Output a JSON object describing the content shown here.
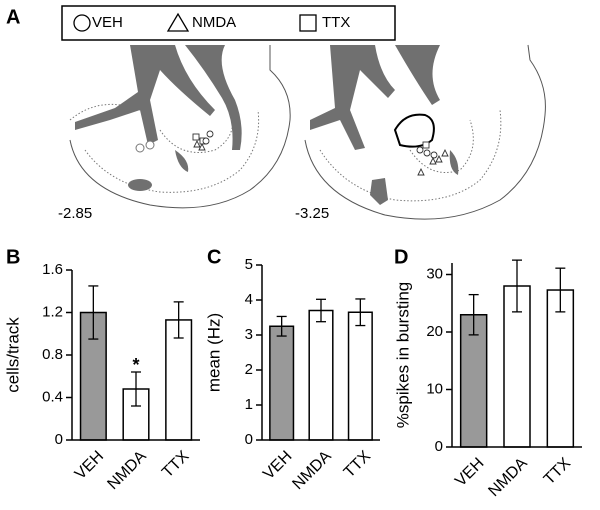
{
  "panel_a": {
    "letter": "A",
    "legend": [
      "VEH",
      "NMDA",
      "TTX"
    ],
    "sections": [
      "-2.85",
      "-3.25"
    ]
  },
  "chart_data": [
    {
      "type": "bar",
      "panel": "B",
      "ylabel": "cells/track",
      "categories": [
        "VEH",
        "NMDA",
        "TTX"
      ],
      "values": [
        1.2,
        0.48,
        1.13
      ],
      "errors": [
        0.25,
        0.16,
        0.17
      ],
      "colors": [
        "#999999",
        "#ffffff",
        "#ffffff"
      ],
      "ylim": [
        0,
        1.6
      ],
      "yticks": [
        0,
        0.4,
        0.8,
        1.2,
        1.6
      ],
      "annotation": "*"
    },
    {
      "type": "bar",
      "panel": "C",
      "ylabel": "mean (Hz)",
      "categories": [
        "VEH",
        "NMDA",
        "TTX"
      ],
      "values": [
        3.25,
        3.7,
        3.65
      ],
      "errors": [
        0.28,
        0.32,
        0.38
      ],
      "colors": [
        "#999999",
        "#ffffff",
        "#ffffff"
      ],
      "ylim": [
        0,
        5
      ],
      "yticks": [
        0,
        1,
        2,
        3,
        4,
        5
      ]
    },
    {
      "type": "bar",
      "panel": "D",
      "ylabel": "%spikes in bursting",
      "categories": [
        "VEH",
        "NMDA",
        "TTX"
      ],
      "values": [
        23,
        28,
        27.3
      ],
      "errors": [
        3.5,
        4.5,
        3.8
      ],
      "colors": [
        "#999999",
        "#ffffff",
        "#ffffff"
      ],
      "ylim": [
        0,
        32
      ],
      "yticks": [
        0,
        10,
        20,
        30
      ]
    }
  ]
}
